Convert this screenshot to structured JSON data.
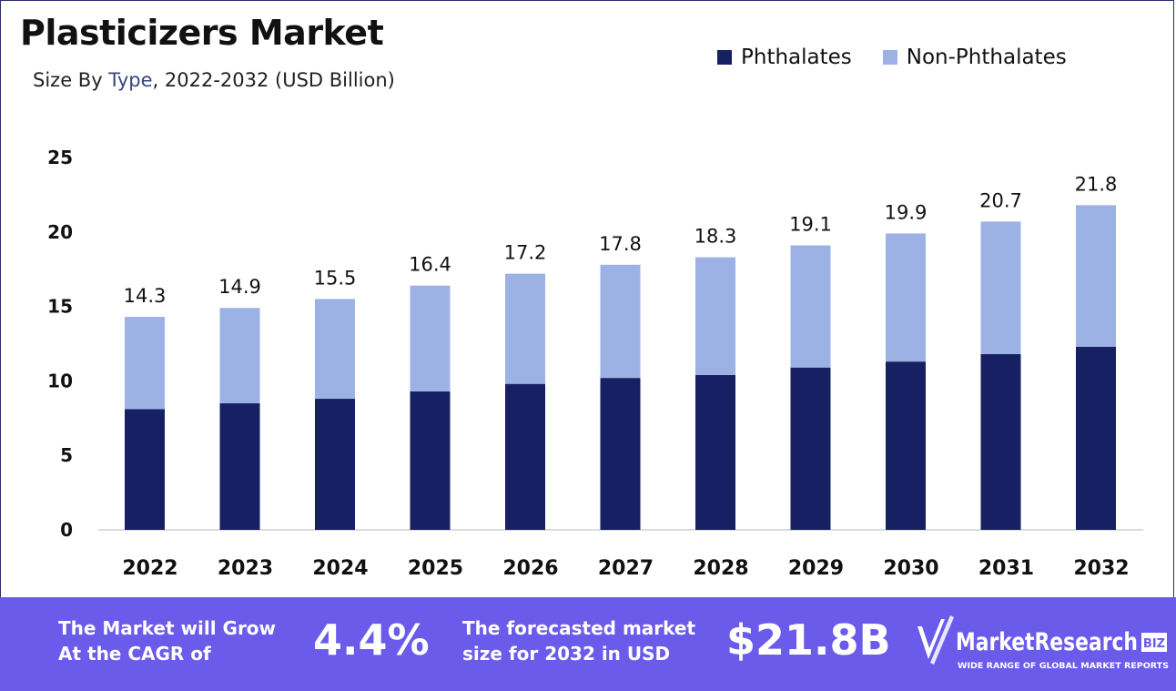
{
  "header": {
    "title": "Plasticizers Market",
    "subtitle_prefix": "Size By ",
    "subtitle_highlight": "Type",
    "subtitle_suffix": ", 2022-2032 (USD Billion)"
  },
  "legend": [
    {
      "label": "Phthalates",
      "color": "#172062"
    },
    {
      "label": "Non-Phthalates",
      "color": "#9cb2e5"
    }
  ],
  "chart_data": {
    "type": "bar",
    "stacked": true,
    "categories": [
      "2022",
      "2023",
      "2024",
      "2025",
      "2026",
      "2027",
      "2028",
      "2029",
      "2030",
      "2031",
      "2032"
    ],
    "series": [
      {
        "name": "Phthalates",
        "values": [
          8.1,
          8.5,
          8.8,
          9.3,
          9.8,
          10.2,
          10.4,
          10.9,
          11.3,
          11.8,
          12.3
        ]
      },
      {
        "name": "Non-Phthalates",
        "values": [
          6.2,
          6.4,
          6.7,
          7.1,
          7.4,
          7.6,
          7.9,
          8.2,
          8.6,
          8.9,
          9.5
        ]
      }
    ],
    "totals": [
      "14.3",
      "14.9",
      "15.5",
      "16.4",
      "17.2",
      "17.8",
      "18.3",
      "19.1",
      "19.9",
      "20.7",
      "21.8"
    ],
    "yticks": [
      0,
      5,
      10,
      15,
      20,
      25
    ],
    "ylim": [
      0,
      25
    ],
    "grid": false,
    "legend_position": "top-right"
  },
  "banner": {
    "cagr_text_line1": "The Market will Grow",
    "cagr_text_line2": "At the CAGR of",
    "cagr_value": "4.4%",
    "forecast_text_line1": "The forecasted market",
    "forecast_text_line2": "size for 2032 in USD",
    "forecast_value": "$21.8B",
    "logo_name": "MarketResearch",
    "logo_badge": "BIZ",
    "logo_tagline": "WIDE RANGE OF GLOBAL MARKET REPORTS"
  }
}
